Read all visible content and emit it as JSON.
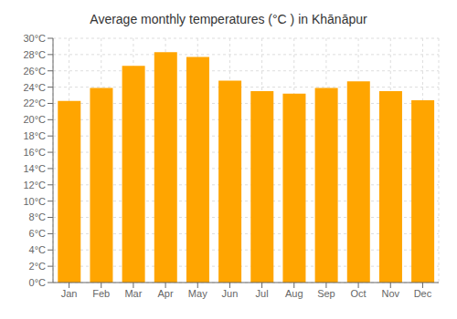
{
  "chart_data": {
    "type": "bar",
    "title": "Average monthly temperatures (°C ) in Khānāpur",
    "categories": [
      "Jan",
      "Feb",
      "Mar",
      "Apr",
      "May",
      "Jun",
      "Jul",
      "Aug",
      "Sep",
      "Oct",
      "Nov",
      "Dec"
    ],
    "values": [
      22.3,
      23.9,
      26.6,
      28.3,
      27.7,
      24.8,
      23.5,
      23.2,
      23.9,
      24.7,
      23.5,
      22.4
    ],
    "color": "#FFA500",
    "ylim": [
      0,
      30
    ],
    "yticks": [
      {
        "value": 0,
        "label": "0°C"
      },
      {
        "value": 2,
        "label": "2°C"
      },
      {
        "value": 4,
        "label": "4°C"
      },
      {
        "value": 6,
        "label": "6°C"
      },
      {
        "value": 8,
        "label": "8°C"
      },
      {
        "value": 10,
        "label": "10°C"
      },
      {
        "value": 12,
        "label": "12°C"
      },
      {
        "value": 14,
        "label": "14°C"
      },
      {
        "value": 16,
        "label": "16°C"
      },
      {
        "value": 18,
        "label": "18°C"
      },
      {
        "value": 20,
        "label": "20°C"
      },
      {
        "value": 22,
        "label": "22°C"
      },
      {
        "value": 24,
        "label": "24°C"
      },
      {
        "value": 26,
        "label": "26°C"
      },
      {
        "value": 28,
        "label": "28°C"
      },
      {
        "value": 30,
        "label": "30°C"
      }
    ],
    "grid": true
  }
}
